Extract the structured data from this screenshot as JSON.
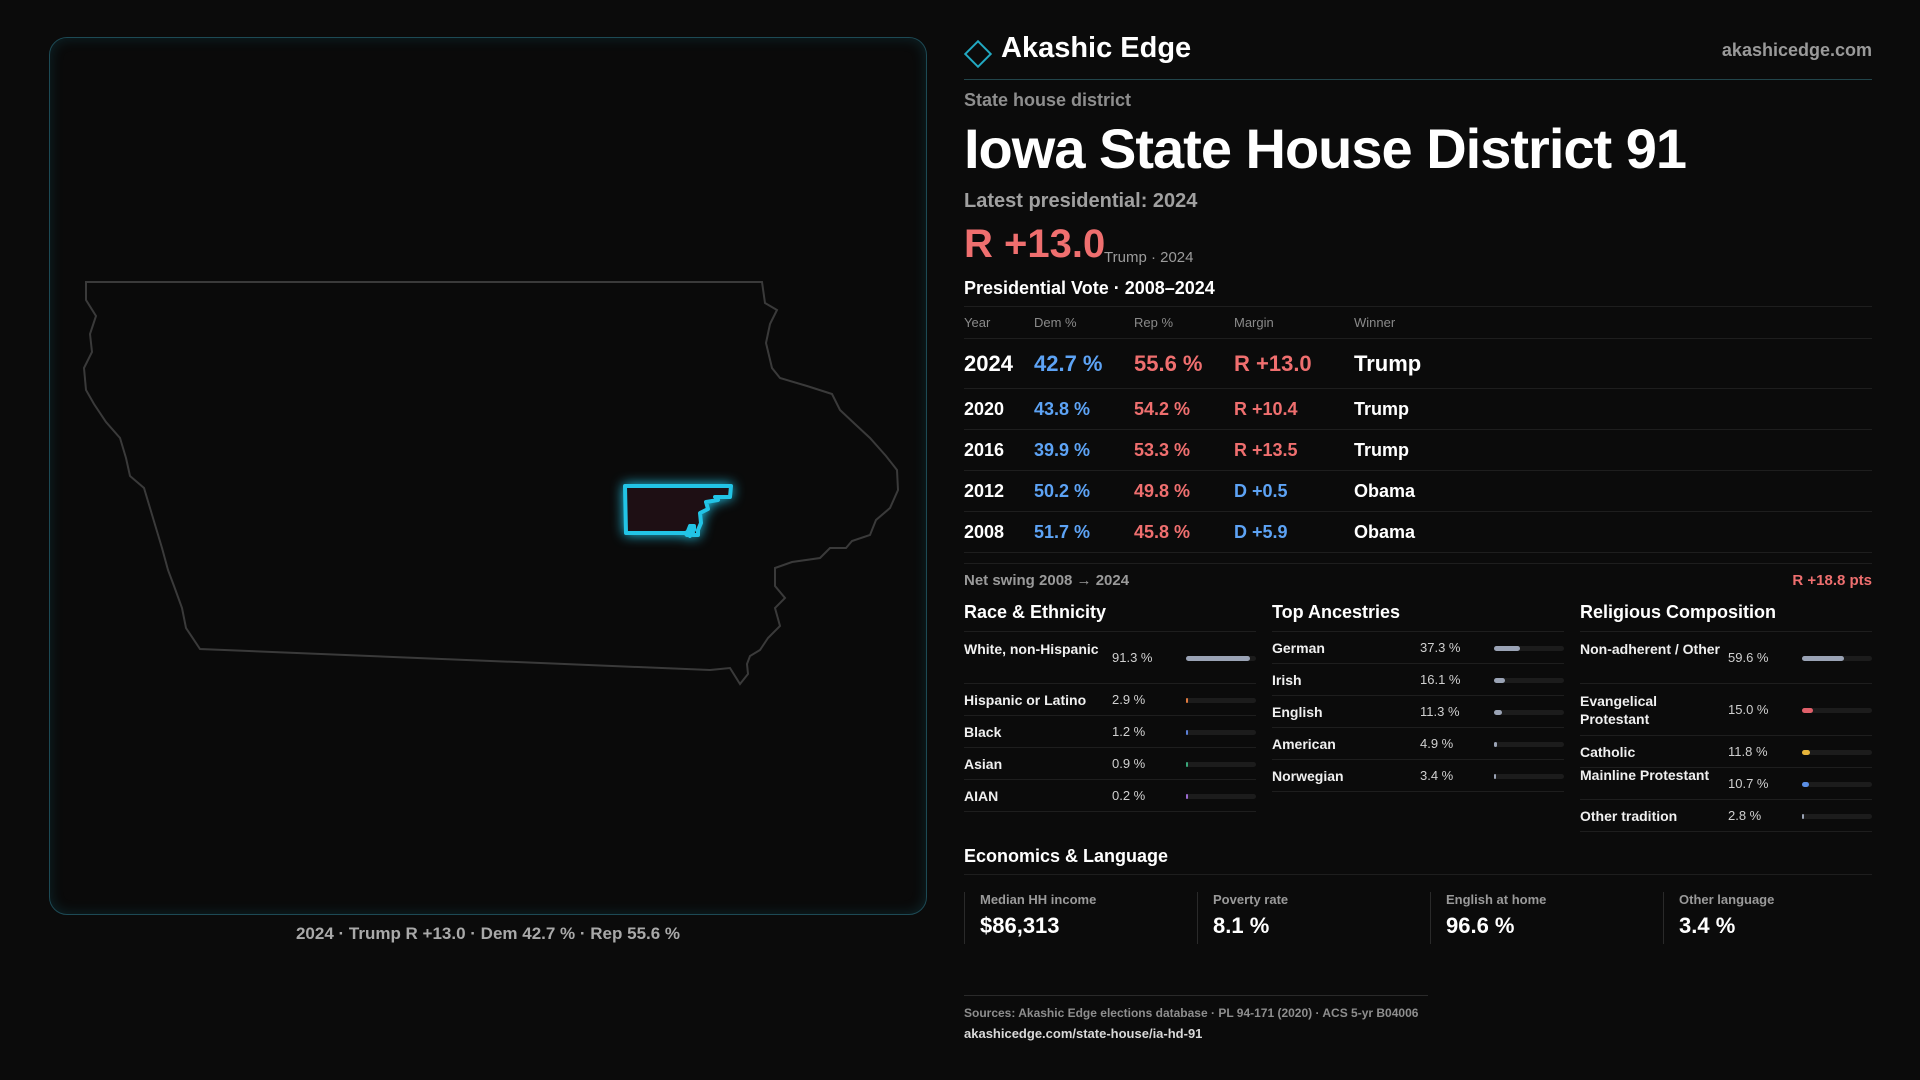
{
  "map": {
    "caption": "2024 · Trump R +13.0 · Dem 42.7 % · Rep 55.6 %",
    "state_outline_color": "#3a3a3a",
    "district_color": "#22c4e6"
  },
  "header": {
    "brand": "Akashic Edge",
    "site": "akashicedge.com"
  },
  "district": {
    "kind": "State house district",
    "title": "Iowa State House District 91",
    "latest_label": "Latest presidential: 2024",
    "margin": "R +13.0",
    "margin_sub": "Trump · 2024"
  },
  "presidential": {
    "title": "Presidential Vote · 2008–2024",
    "headers": [
      "Year",
      "Dem %",
      "Rep %",
      "Margin",
      "Winner"
    ],
    "rows": [
      {
        "year": "2024",
        "dem": "42.7 %",
        "rep": "55.6 %",
        "margin": "R +13.0",
        "party": "R",
        "winner": "Trump"
      },
      {
        "year": "2020",
        "dem": "43.8 %",
        "rep": "54.2 %",
        "margin": "R +10.4",
        "party": "R",
        "winner": "Trump"
      },
      {
        "year": "2016",
        "dem": "39.9 %",
        "rep": "53.3 %",
        "margin": "R +13.5",
        "party": "R",
        "winner": "Trump"
      },
      {
        "year": "2012",
        "dem": "50.2 %",
        "rep": "49.8 %",
        "margin": "D +0.5",
        "party": "D",
        "winner": "Obama"
      },
      {
        "year": "2008",
        "dem": "51.7 %",
        "rep": "45.8 %",
        "margin": "D +5.9",
        "party": "D",
        "winner": "Obama"
      }
    ],
    "swing_label": "Net swing 2008 → 2024",
    "swing_value": "R +18.8 pts"
  },
  "race": {
    "title": "Race & Ethnicity",
    "items": [
      {
        "label": "White, non-Hispanic",
        "pct": "91.3 %",
        "value": 91.3,
        "color": "#9aa3b5"
      },
      {
        "label": "Hispanic or Latino",
        "pct": "2.9 %",
        "value": 2.9,
        "color": "#e07a3f"
      },
      {
        "label": "Black",
        "pct": "1.2 %",
        "value": 1.2,
        "color": "#5b7fd6"
      },
      {
        "label": "Asian",
        "pct": "0.9 %",
        "value": 0.9,
        "color": "#3aa67a"
      },
      {
        "label": "AIAN",
        "pct": "0.2 %",
        "value": 0.2,
        "color": "#9a6ad0"
      }
    ]
  },
  "ancestry": {
    "title": "Top Ancestries",
    "items": [
      {
        "label": "German",
        "pct": "37.3 %",
        "value": 37.3,
        "color": "#9aa3b5"
      },
      {
        "label": "Irish",
        "pct": "16.1 %",
        "value": 16.1,
        "color": "#9aa3b5"
      },
      {
        "label": "English",
        "pct": "11.3 %",
        "value": 11.3,
        "color": "#9aa3b5"
      },
      {
        "label": "American",
        "pct": "4.9 %",
        "value": 4.9,
        "color": "#9aa3b5"
      },
      {
        "label": "Norwegian",
        "pct": "3.4 %",
        "value": 3.4,
        "color": "#9aa3b5"
      }
    ]
  },
  "religion": {
    "title": "Religious Composition",
    "items": [
      {
        "label": "Non-adherent / Other",
        "pct": "59.6 %",
        "value": 59.6,
        "color": "#9aa3b5"
      },
      {
        "label": "Evangelical Protestant",
        "pct": "15.0 %",
        "value": 15.0,
        "color": "#e0606a"
      },
      {
        "label": "Catholic",
        "pct": "11.8 %",
        "value": 11.8,
        "color": "#e6b43a"
      },
      {
        "label": "Mainline Protestant",
        "pct": "10.7 %",
        "value": 10.7,
        "color": "#5b8fe6"
      },
      {
        "label": "Other tradition",
        "pct": "2.8 %",
        "value": 2.8,
        "color": "#9aa3b5"
      }
    ]
  },
  "economics": {
    "title": "Economics & Language",
    "items": [
      {
        "label": "Median HH income",
        "value": "$86,313"
      },
      {
        "label": "Poverty rate",
        "value": "8.1 %"
      },
      {
        "label": "English at home",
        "value": "96.6 %"
      },
      {
        "label": "Other language",
        "value": "3.4 %"
      }
    ]
  },
  "sources": {
    "text": "Sources: Akashic Edge elections database · PL 94-171 (2020) · ACS 5-yr B04006",
    "url": "akashicedge.com/state-house/ia-hd-91"
  },
  "colors": {
    "dem": "#5da3f5",
    "rep": "#ef6f6f",
    "accent": "#22a9c2"
  }
}
